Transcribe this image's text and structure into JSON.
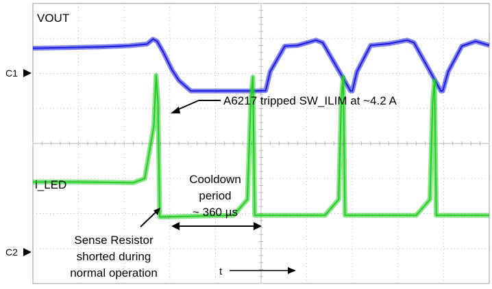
{
  "chart_data": {
    "type": "line",
    "title": "",
    "xlabel": "t",
    "ylabel": "",
    "grid": true,
    "colors": {
      "vout": "#1a1adf",
      "iled": "#22cc22",
      "grid": "#b8b8b8"
    },
    "channel_markers": [
      "C1",
      "C2"
    ],
    "series": [
      {
        "name": "VOUT",
        "color": "#1a1adf",
        "x": [
          0,
          0.8,
          1.5,
          2.1,
          2.5,
          2.63,
          2.72,
          2.86,
          3.05,
          3.2,
          3.46,
          4.9,
          5.1,
          5.2,
          5.52,
          5.8,
          6.2,
          6.35,
          6.96,
          7.0,
          7.1,
          7.4,
          7.8,
          8.2,
          8.35,
          8.94,
          8.98,
          9.1,
          9.4,
          9.7,
          10.0
        ],
        "values": [
          2.72,
          2.74,
          2.76,
          2.79,
          2.84,
          2.98,
          2.92,
          2.6,
          2.1,
          1.8,
          1.5,
          1.5,
          1.51,
          2.05,
          2.78,
          2.8,
          2.95,
          2.88,
          1.5,
          1.5,
          2.05,
          2.8,
          2.85,
          2.95,
          2.88,
          1.5,
          1.5,
          2.05,
          2.78,
          2.92,
          2.8
        ]
      },
      {
        "name": "i_LED",
        "color": "#22cc22",
        "x": [
          0,
          1.0,
          2.2,
          2.45,
          2.65,
          2.7,
          2.74,
          2.78,
          4.4,
          4.7,
          4.78,
          4.82,
          4.86,
          6.4,
          6.7,
          6.76,
          6.8,
          6.84,
          8.4,
          8.7,
          8.76,
          8.8,
          8.84,
          10.0
        ],
        "values": [
          -1.1,
          -1.1,
          -1.12,
          -1.0,
          0.5,
          1.95,
          1.2,
          -2.1,
          -2.05,
          -1.6,
          1.35,
          1.9,
          -2.05,
          -2.05,
          -1.6,
          1.3,
          1.9,
          -2.05,
          -2.05,
          -1.6,
          1.2,
          1.8,
          -2.05,
          -2.05
        ]
      }
    ],
    "xlim": [
      0,
      10
    ],
    "ylim": [
      -4,
      4
    ]
  },
  "annotations": {
    "vout_label": "VOUT",
    "iled_label": "i_LED",
    "c1": "C1",
    "c2": "C2",
    "ilim_note": "A6217 tripped SW_ILIM at ~4.2 A",
    "cooldown_line1": "Cooldown",
    "cooldown_line2": "period",
    "cooldown_line3": "~ 360 µs",
    "sense_line1": "Sense Resistor",
    "sense_line2": "shorted during",
    "sense_line3": "normal operation",
    "time_label": "t"
  }
}
